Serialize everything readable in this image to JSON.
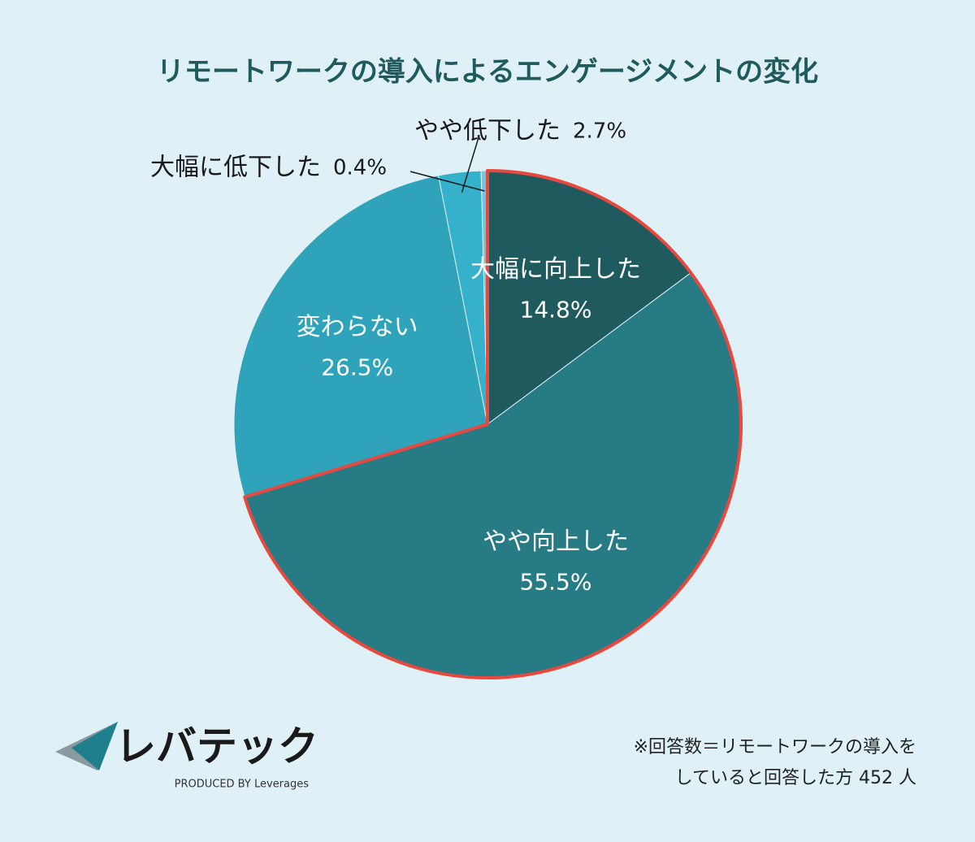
{
  "chart_data": {
    "type": "pie",
    "title": "リモートワークの導入によるエンゲージメントの変化",
    "categories": [
      "大幅に向上した",
      "やや向上した",
      "変わらない",
      "やや低下した",
      "大幅に低下した"
    ],
    "values": [
      14.8,
      55.5,
      26.5,
      2.7,
      0.4
    ],
    "value_labels": [
      "14.8%",
      "55.5%",
      "26.5%",
      "2.7%",
      "0.4%"
    ],
    "colors": [
      "#1f5b5e",
      "#277b84",
      "#2ea3b9",
      "#35b1cb",
      "#6cc8da"
    ],
    "highlight": [
      0,
      1
    ],
    "highlight_color": "#e8483d",
    "note": [
      "※回答数＝リモートワークの導入を",
      "していると回答した方 452 人"
    ]
  },
  "logo": {
    "name": "レバテック",
    "tagline": "PRODUCED BY Leverages"
  }
}
